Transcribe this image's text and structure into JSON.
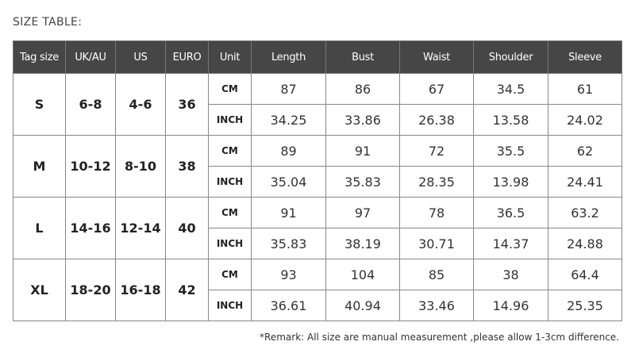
{
  "title": "SIZE TABLE:",
  "headers": [
    "Tag size",
    "UK/AU",
    "US",
    "EURO",
    "Unit",
    "Length",
    "Bust",
    "Waist",
    "Shoulder",
    "Sleeve"
  ],
  "rows": [
    {
      "tag": "S",
      "uk": "6-8",
      "us": "4-6",
      "euro": "36",
      "cm": [
        "87",
        "86",
        "67",
        "34.5",
        "61"
      ],
      "inch": [
        "34.25",
        "33.86",
        "26.38",
        "13.58",
        "24.02"
      ]
    },
    {
      "tag": "M",
      "uk": "10-12",
      "us": "8-10",
      "euro": "38",
      "cm": [
        "89",
        "91",
        "72",
        "35.5",
        "62"
      ],
      "inch": [
        "35.04",
        "35.83",
        "28.35",
        "13.98",
        "24.41"
      ]
    },
    {
      "tag": "L",
      "uk": "14-16",
      "us": "12-14",
      "euro": "40",
      "cm": [
        "91",
        "97",
        "78",
        "36.5",
        "63.2"
      ],
      "inch": [
        "35.83",
        "38.19",
        "30.71",
        "14.37",
        "24.88"
      ]
    },
    {
      "tag": "XL",
      "uk": "18-20",
      "us": "16-18",
      "euro": "42",
      "cm": [
        "93",
        "104",
        "85",
        "38",
        "64.4"
      ],
      "inch": [
        "36.61",
        "40.94",
        "33.46",
        "14.96",
        "25.35"
      ]
    }
  ],
  "units": {
    "cm": "CM",
    "inch": "INCH"
  },
  "remark": "*Remark: All size are manual measurement ,please allow 1-3cm difference."
}
